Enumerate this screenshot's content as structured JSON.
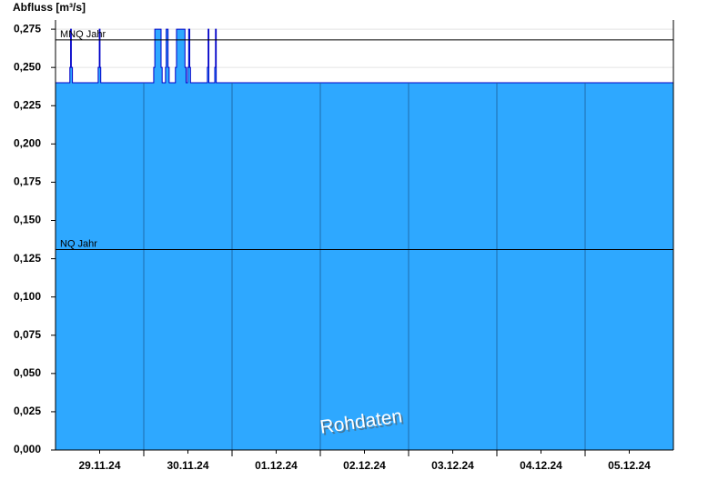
{
  "chart_data": {
    "type": "area",
    "y_label": "Abfluss [m³/s]",
    "watermark": "Rohdaten",
    "x": [
      0,
      3.9,
      4.1,
      4.3,
      4.6,
      11.6,
      11.9,
      12.1,
      12.3,
      26.7,
      27.0,
      28.7,
      29.0,
      29.9,
      30.1,
      30.6,
      30.9,
      32.6,
      32.9,
      35.2,
      35.5,
      35.9,
      36.2,
      36.5,
      36.7,
      41.3,
      41.5,
      41.7,
      43.3,
      43.5,
      43.7,
      168
    ],
    "values": [
      0.24,
      0.25,
      0.275,
      0.25,
      0.24,
      0.25,
      0.275,
      0.25,
      0.24,
      0.25,
      0.275,
      0.25,
      0.24,
      0.25,
      0.275,
      0.25,
      0.24,
      0.25,
      0.275,
      0.25,
      0.24,
      0.25,
      0.275,
      0.25,
      0.24,
      0.25,
      0.275,
      0.24,
      0.25,
      0.275,
      0.24,
      0.24
    ],
    "color": "#2ea8ff",
    "line_color": "#0000c8",
    "xlim": [
      0,
      168
    ],
    "xticks": [
      {
        "value": 12,
        "label": "29.11.24"
      },
      {
        "value": 36,
        "label": "30.11.24"
      },
      {
        "value": 60,
        "label": "01.12.24"
      },
      {
        "value": 84,
        "label": "02.12.24"
      },
      {
        "value": 108,
        "label": "03.12.24"
      },
      {
        "value": 132,
        "label": "04.12.24"
      },
      {
        "value": 156,
        "label": "05.12.24"
      }
    ],
    "x_gridlines": [
      24,
      48,
      72,
      96,
      120,
      144
    ],
    "ylim": [
      0,
      0.281
    ],
    "yticks": [
      {
        "value": 0,
        "label": "0,000"
      },
      {
        "value": 0.025,
        "label": "0,025"
      },
      {
        "value": 0.05,
        "label": "0,050"
      },
      {
        "value": 0.075,
        "label": "0,075"
      },
      {
        "value": 0.1,
        "label": "0,100"
      },
      {
        "value": 0.125,
        "label": "0,125"
      },
      {
        "value": 0.15,
        "label": "0,150"
      },
      {
        "value": 0.175,
        "label": "0,175"
      },
      {
        "value": 0.2,
        "label": "0,200"
      },
      {
        "value": 0.225,
        "label": "0,225"
      },
      {
        "value": 0.25,
        "label": "0,250"
      },
      {
        "value": 0.275,
        "label": "0,275"
      }
    ],
    "grid": true,
    "reference_lines": [
      {
        "label": "MNQ Jahr",
        "value": 0.268
      },
      {
        "label": "NQ Jahr",
        "value": 0.131
      }
    ]
  }
}
